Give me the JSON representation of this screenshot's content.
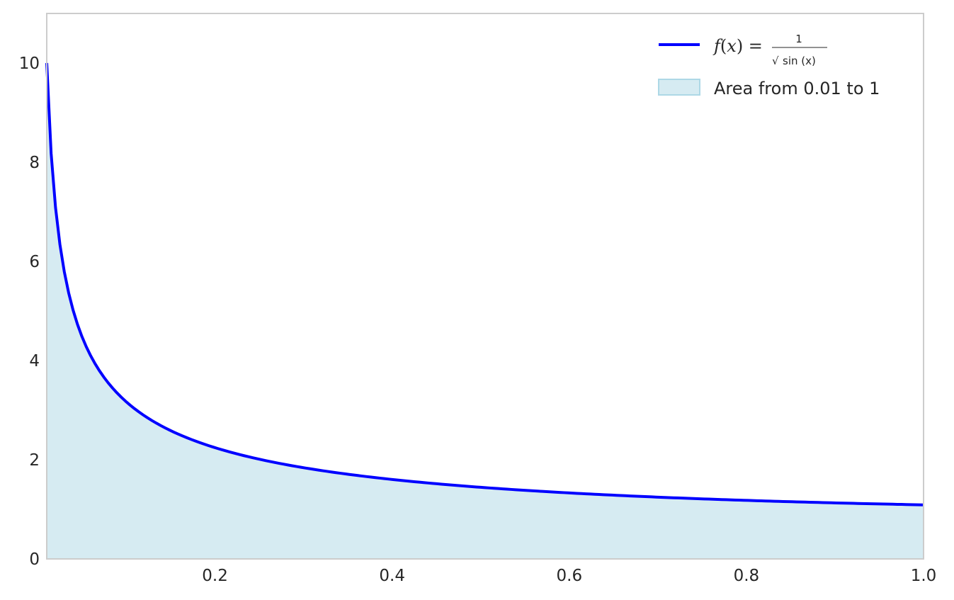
{
  "chart_data": {
    "type": "area",
    "title": "",
    "xlabel": "",
    "ylabel": "",
    "xlim": [
      0.01,
      1.0
    ],
    "ylim": [
      0,
      11
    ],
    "grid": false,
    "legend_placement": "top-right",
    "x_ticks": [
      0.2,
      0.4,
      0.6,
      0.8,
      1.0
    ],
    "x_tick_labels": [
      "0.2",
      "0.4",
      "0.6",
      "0.8",
      "1.0"
    ],
    "y_ticks": [
      0,
      2,
      4,
      6,
      8,
      10
    ],
    "y_tick_labels": [
      "0",
      "2",
      "4",
      "6",
      "8",
      "10"
    ],
    "series": [
      {
        "name": "f(x) = 1/√sin(x)",
        "kind": "line",
        "color": "#0000ff",
        "x": [
          0.01,
          0.02,
          0.03,
          0.04,
          0.05,
          0.06,
          0.07,
          0.08,
          0.1,
          0.12,
          0.15,
          0.2,
          0.25,
          0.3,
          0.4,
          0.5,
          0.6,
          0.7,
          0.8,
          0.9,
          1.0
        ],
        "y": [
          10.0,
          7.07,
          5.77,
          5.0,
          4.47,
          4.08,
          3.78,
          3.54,
          3.17,
          2.89,
          2.59,
          2.25,
          2.02,
          1.85,
          1.61,
          1.44,
          1.33,
          1.24,
          1.18,
          1.13,
          1.09
        ]
      },
      {
        "name": "Area from 0.01 to 1",
        "kind": "fill",
        "color": "#add8e6",
        "alpha": 0.5,
        "x_from": 0.01,
        "x_to": 1.0
      }
    ],
    "legend": {
      "line_label_parts": {
        "lhs": "f(x) = ",
        "numerator": "1",
        "radical": "√",
        "denominator": "sin (x)"
      },
      "fill_label": "Area from 0.01 to 1"
    },
    "colors": {
      "axes_edge": "#cccccc",
      "tick_text": "#262626",
      "line": "#0000ff",
      "fill": "#add8e6"
    }
  }
}
